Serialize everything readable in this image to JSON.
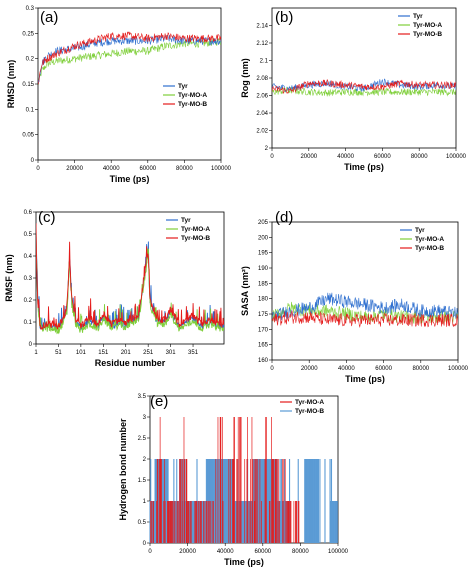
{
  "colors": {
    "Tyr": "#2e6fcf",
    "Tyr-MO-A": "#7fcf3a",
    "Tyr-MO-B": "#e41b1b",
    "hb_MO_A": "#e41b1b",
    "hb_MO_B": "#5b9bd5"
  },
  "chart_data": [
    {
      "id": "a",
      "label": "(a)",
      "type": "line",
      "xlabel": "Time (ps)",
      "ylabel": "RMSD (nm)",
      "xlim": [
        0,
        100000
      ],
      "ylim": [
        0,
        0.3
      ],
      "xticks": [
        0,
        20000,
        40000,
        60000,
        80000,
        100000
      ],
      "yticks": [
        0,
        0.05,
        0.1,
        0.15,
        0.2,
        0.25,
        0.3
      ],
      "legend": [
        "Tyr",
        "Tyr-MO-A",
        "Tyr-MO-B"
      ],
      "legend_position": "right",
      "series": [
        {
          "name": "Tyr",
          "x": [
            0,
            2000,
            5000,
            10000,
            20000,
            30000,
            40000,
            50000,
            60000,
            70000,
            80000,
            90000,
            100000
          ],
          "y": [
            0.15,
            0.19,
            0.205,
            0.215,
            0.22,
            0.23,
            0.235,
            0.235,
            0.235,
            0.24,
            0.235,
            0.235,
            0.235
          ]
        },
        {
          "name": "Tyr-MO-A",
          "x": [
            0,
            2000,
            5000,
            10000,
            20000,
            30000,
            40000,
            50000,
            60000,
            70000,
            80000,
            90000,
            100000
          ],
          "y": [
            0.15,
            0.175,
            0.19,
            0.195,
            0.2,
            0.205,
            0.21,
            0.215,
            0.215,
            0.225,
            0.23,
            0.23,
            0.235
          ]
        },
        {
          "name": "Tyr-MO-B",
          "x": [
            0,
            2000,
            5000,
            10000,
            20000,
            30000,
            40000,
            50000,
            60000,
            70000,
            80000,
            90000,
            100000
          ],
          "y": [
            0.15,
            0.19,
            0.2,
            0.21,
            0.225,
            0.235,
            0.245,
            0.245,
            0.24,
            0.245,
            0.24,
            0.24,
            0.24
          ]
        }
      ]
    },
    {
      "id": "b",
      "label": "(b)",
      "type": "line",
      "xlabel": "Time (ps)",
      "ylabel": "Rog (nm)",
      "xlim": [
        0,
        100000
      ],
      "ylim": [
        2,
        2.16
      ],
      "xticks": [
        0,
        20000,
        40000,
        60000,
        80000,
        100000
      ],
      "yticks": [
        2,
        2.02,
        2.04,
        2.06,
        2.08,
        2.1,
        2.12,
        2.14
      ],
      "legend": [
        "Tyr",
        "Tyr-MO-A",
        "Tyr-MO-B"
      ],
      "legend_position": "top-right",
      "series": [
        {
          "name": "Tyr",
          "x": [
            0,
            10000,
            20000,
            30000,
            40000,
            50000,
            60000,
            70000,
            80000,
            90000,
            100000
          ],
          "y": [
            2.07,
            2.068,
            2.072,
            2.074,
            2.07,
            2.068,
            2.076,
            2.072,
            2.07,
            2.072,
            2.07
          ]
        },
        {
          "name": "Tyr-MO-A",
          "x": [
            0,
            10000,
            20000,
            30000,
            40000,
            50000,
            60000,
            70000,
            80000,
            90000,
            100000
          ],
          "y": [
            2.064,
            2.066,
            2.064,
            2.063,
            2.064,
            2.064,
            2.064,
            2.064,
            2.064,
            2.064,
            2.064
          ]
        },
        {
          "name": "Tyr-MO-B",
          "x": [
            0,
            10000,
            20000,
            30000,
            40000,
            50000,
            60000,
            70000,
            80000,
            90000,
            100000
          ],
          "y": [
            2.068,
            2.065,
            2.074,
            2.074,
            2.072,
            2.07,
            2.07,
            2.074,
            2.072,
            2.072,
            2.072
          ]
        }
      ]
    },
    {
      "id": "c",
      "label": "(c)",
      "type": "line",
      "xlabel": "Residue number",
      "ylabel": "RMSF (nm)",
      "xlim": [
        1,
        420
      ],
      "ylim": [
        0,
        0.6
      ],
      "xticks": [
        1,
        51,
        101,
        151,
        201,
        251,
        301,
        351
      ],
      "yticks": [
        0,
        0.1,
        0.2,
        0.3,
        0.4,
        0.5,
        0.6
      ],
      "legend": [
        "Tyr",
        "Tyr-MO-A",
        "Tyr-MO-B"
      ],
      "legend_position": "top-right",
      "series": [
        {
          "name": "Tyr",
          "x": [
            1,
            5,
            10,
            30,
            51,
            60,
            70,
            76,
            80,
            90,
            101,
            120,
            140,
            151,
            170,
            190,
            201,
            210,
            230,
            251,
            255,
            270,
            290,
            301,
            320,
            340,
            351,
            370,
            390,
            410
          ],
          "y": [
            0.52,
            0.2,
            0.08,
            0.08,
            0.07,
            0.1,
            0.15,
            0.4,
            0.2,
            0.1,
            0.07,
            0.1,
            0.08,
            0.12,
            0.08,
            0.1,
            0.08,
            0.1,
            0.12,
            0.42,
            0.2,
            0.1,
            0.1,
            0.15,
            0.08,
            0.1,
            0.12,
            0.08,
            0.1,
            0.08
          ]
        },
        {
          "name": "Tyr-MO-A",
          "x": [
            1,
            5,
            10,
            30,
            51,
            60,
            70,
            76,
            80,
            90,
            101,
            120,
            140,
            151,
            170,
            190,
            201,
            210,
            230,
            251,
            255,
            270,
            290,
            301,
            320,
            340,
            351,
            370,
            390,
            410
          ],
          "y": [
            0.5,
            0.18,
            0.07,
            0.07,
            0.06,
            0.09,
            0.14,
            0.38,
            0.18,
            0.09,
            0.06,
            0.09,
            0.07,
            0.11,
            0.07,
            0.09,
            0.07,
            0.09,
            0.11,
            0.4,
            0.18,
            0.09,
            0.09,
            0.13,
            0.07,
            0.09,
            0.1,
            0.07,
            0.09,
            0.07
          ]
        },
        {
          "name": "Tyr-MO-B",
          "x": [
            1,
            5,
            10,
            30,
            51,
            60,
            70,
            76,
            80,
            90,
            101,
            120,
            140,
            151,
            170,
            190,
            201,
            210,
            230,
            251,
            255,
            270,
            290,
            301,
            320,
            340,
            351,
            370,
            390,
            410
          ],
          "y": [
            0.48,
            0.19,
            0.08,
            0.09,
            0.08,
            0.11,
            0.16,
            0.42,
            0.21,
            0.11,
            0.08,
            0.12,
            0.09,
            0.14,
            0.09,
            0.12,
            0.09,
            0.11,
            0.13,
            0.43,
            0.2,
            0.11,
            0.11,
            0.16,
            0.09,
            0.11,
            0.13,
            0.09,
            0.11,
            0.09
          ]
        }
      ]
    },
    {
      "id": "d",
      "label": "(d)",
      "type": "line",
      "xlabel": "Time (ps)",
      "ylabel": "SASA (nm²)",
      "xlim": [
        0,
        100000
      ],
      "ylim": [
        160,
        205
      ],
      "xticks": [
        0,
        20000,
        40000,
        60000,
        80000,
        100000
      ],
      "yticks": [
        160,
        165,
        170,
        175,
        180,
        185,
        190,
        195,
        200,
        205
      ],
      "legend": [
        "Tyr",
        "Tyr-MO-A",
        "Tyr-MO-B"
      ],
      "legend_position": "top-right",
      "series": [
        {
          "name": "Tyr",
          "x": [
            0,
            10000,
            20000,
            30000,
            40000,
            50000,
            60000,
            70000,
            80000,
            90000,
            100000
          ],
          "y": [
            174,
            176,
            177,
            180,
            179,
            178,
            177,
            178,
            176,
            176,
            175
          ]
        },
        {
          "name": "Tyr-MO-A",
          "x": [
            0,
            10000,
            20000,
            30000,
            40000,
            50000,
            60000,
            70000,
            80000,
            90000,
            100000
          ],
          "y": [
            174,
            177,
            176,
            176,
            175,
            174,
            175,
            174,
            174,
            174,
            174
          ]
        },
        {
          "name": "Tyr-MO-B",
          "x": [
            0,
            10000,
            20000,
            30000,
            40000,
            50000,
            60000,
            70000,
            80000,
            90000,
            100000
          ],
          "y": [
            173,
            174,
            174,
            173,
            173,
            173,
            173,
            173,
            173,
            173,
            173
          ]
        }
      ]
    },
    {
      "id": "e",
      "label": "(e)",
      "type": "bar",
      "xlabel": "Time (ps)",
      "ylabel": "Hydrogen bond number",
      "xlim": [
        0,
        100000
      ],
      "ylim": [
        0,
        3.5
      ],
      "xticks": [
        0,
        20000,
        40000,
        60000,
        80000,
        100000
      ],
      "yticks": [
        0,
        0.5,
        1,
        1.5,
        2,
        2.5,
        3,
        3.5
      ],
      "legend": [
        "Tyr-MO-A",
        "Tyr-MO-B"
      ],
      "legend_position": "top-right",
      "description_levels": "counts of 0,1,2,3 hydrogen bonds over time",
      "series": [
        {
          "name": "Tyr-MO-A",
          "segments": [
            [
              0,
              1
            ],
            [
              2000,
              3
            ],
            [
              4000,
              2
            ],
            [
              8000,
              1
            ],
            [
              14000,
              2
            ],
            [
              20000,
              1
            ],
            [
              35000,
              3
            ],
            [
              40000,
              2
            ],
            [
              48000,
              3
            ],
            [
              55000,
              2
            ],
            [
              60000,
              3
            ],
            [
              65000,
              2
            ],
            [
              72000,
              1
            ],
            [
              80000,
              0
            ]
          ]
        },
        {
          "name": "Tyr-MO-B",
          "segments": [
            [
              0,
              1
            ],
            [
              3000,
              2
            ],
            [
              10000,
              1
            ],
            [
              20000,
              1
            ],
            [
              30000,
              2
            ],
            [
              45000,
              1
            ],
            [
              55000,
              2
            ],
            [
              68000,
              1
            ],
            [
              75000,
              0
            ],
            [
              82000,
              2
            ],
            [
              90000,
              0
            ],
            [
              96000,
              1
            ]
          ]
        }
      ]
    }
  ]
}
